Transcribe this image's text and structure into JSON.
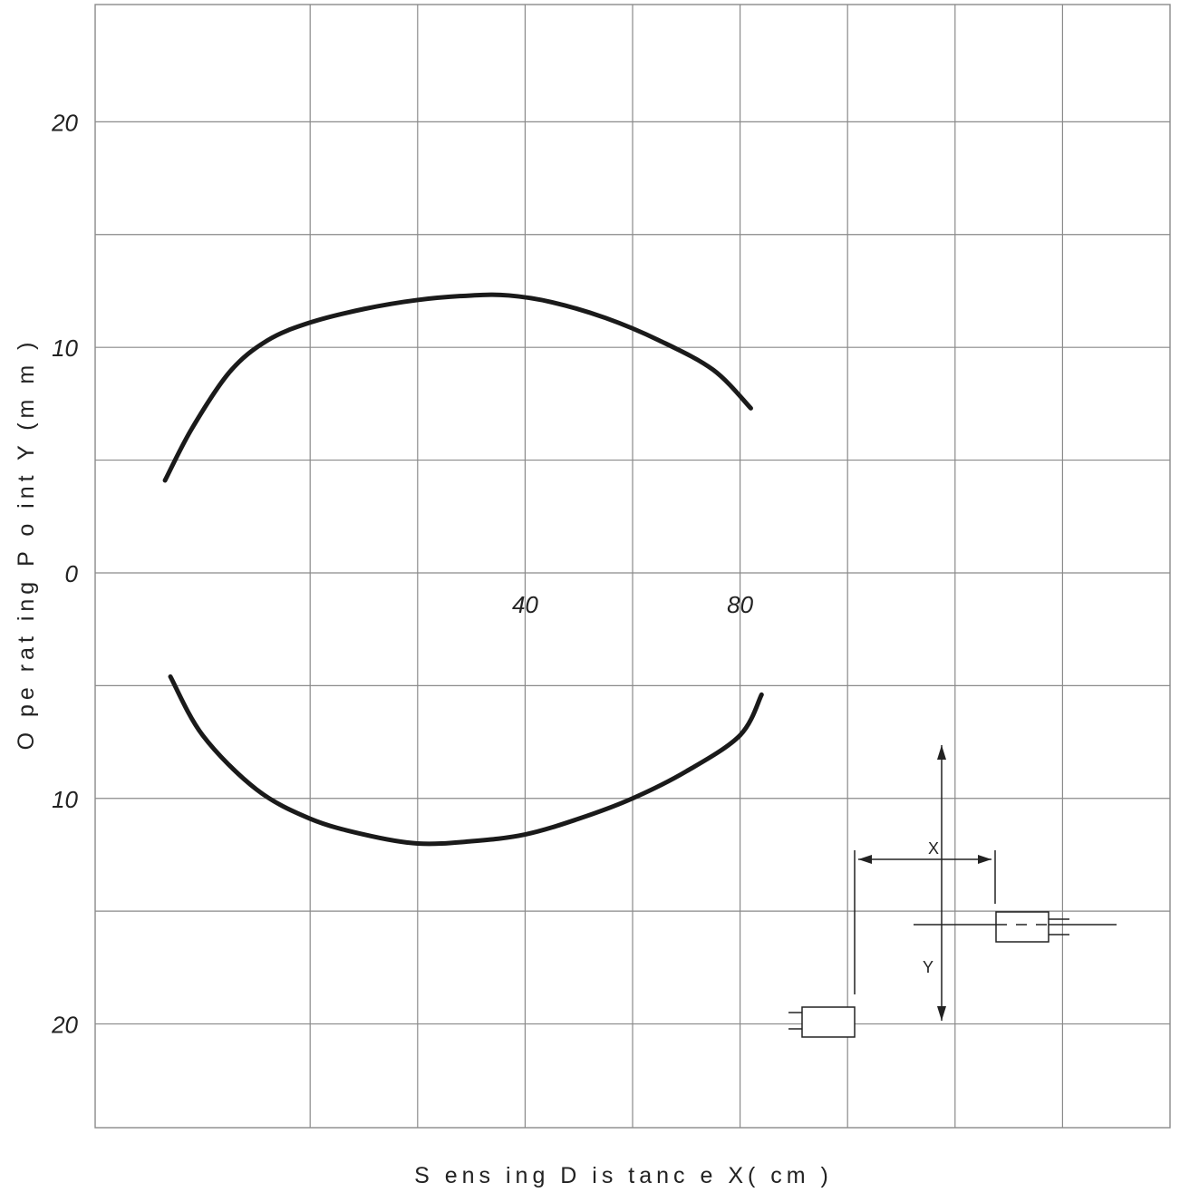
{
  "chart_data": {
    "type": "line",
    "title": "",
    "xlabel": "S ens ing  D is tanc e  X(  cm )",
    "ylabel": "O pe rat ing  P o int Y  (m m )",
    "xlim": [
      -40,
      160
    ],
    "ylim": [
      -24.6,
      25.2
    ],
    "grid": true,
    "x_ticks": [
      {
        "value": 40,
        "label": "40"
      },
      {
        "value": 80,
        "label": "80"
      }
    ],
    "y_ticks": [
      {
        "value": 20,
        "label": "20"
      },
      {
        "value": 10,
        "label": "10"
      },
      {
        "value": 0,
        "label": "0"
      },
      {
        "value": -10,
        "label": "10"
      },
      {
        "value": -20,
        "label": "20"
      }
    ],
    "series": [
      {
        "x": [
          -27,
          -22,
          -15,
          -8,
          0,
          10,
          20,
          30,
          37,
          45,
          55,
          65,
          75,
          82
        ],
        "y": [
          4.1,
          6.4,
          8.9,
          10.3,
          11.1,
          11.7,
          12.1,
          12.3,
          12.3,
          12.0,
          11.3,
          10.3,
          9.0,
          7.3
        ]
      },
      {
        "x": [
          -26,
          -20,
          -10,
          0,
          10,
          20,
          30,
          40,
          50,
          60,
          70,
          80,
          84
        ],
        "y": [
          -4.6,
          -7.2,
          -9.6,
          -10.9,
          -11.6,
          -12.0,
          -11.9,
          -11.6,
          -10.9,
          -10.0,
          -8.8,
          -7.2,
          -5.4
        ]
      }
    ],
    "inset_diagram": {
      "labels": [
        "X",
        "Y"
      ]
    }
  }
}
